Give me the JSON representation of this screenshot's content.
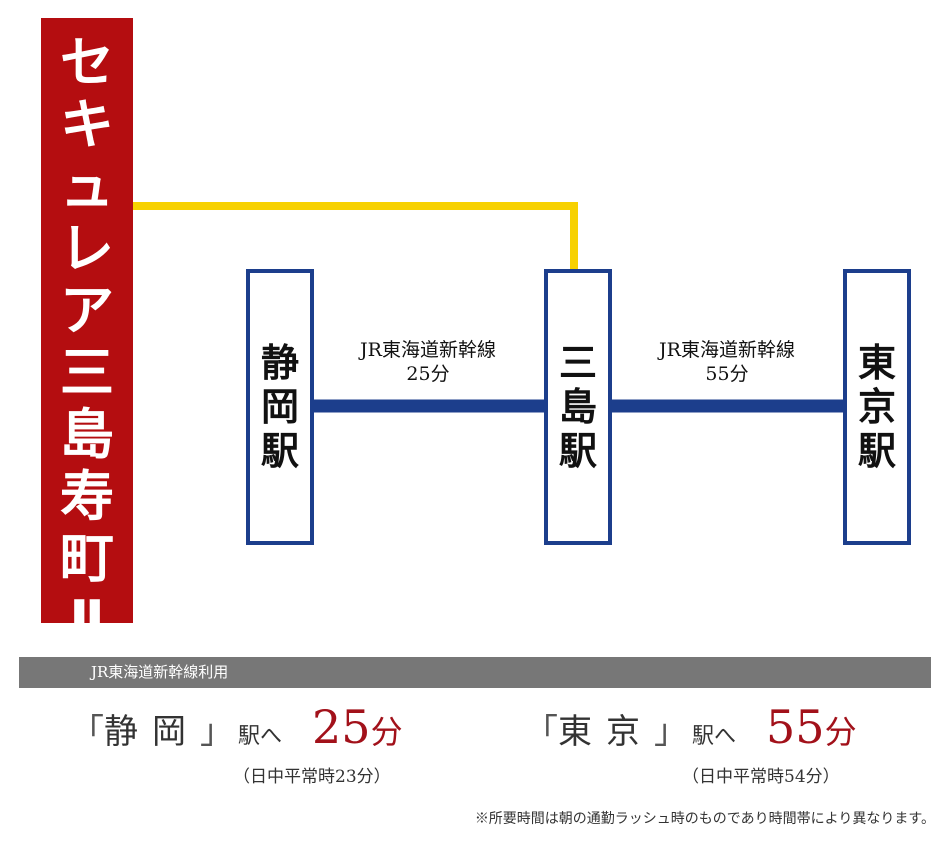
{
  "property": {
    "name_chars": [
      "セ",
      "キ",
      "ュ",
      "レ",
      "ア",
      "三",
      "島",
      "寿",
      "町",
      "Ⅱ"
    ],
    "color": "#b40d10"
  },
  "stations": [
    {
      "id": "shizuoka",
      "chars": [
        "静",
        "岡",
        "駅"
      ]
    },
    {
      "id": "mishima",
      "chars": [
        "三",
        "島",
        "駅"
      ]
    },
    {
      "id": "tokyo",
      "chars": [
        "東",
        "京",
        "駅"
      ]
    }
  ],
  "routes": [
    {
      "line": "JR東海道新幹線",
      "time": "25分"
    },
    {
      "line": "JR東海道新幹線",
      "time": "55分"
    }
  ],
  "colors": {
    "local_route": "#f7d101",
    "shinkansen": "#1c3e8c",
    "accent": "#a2111a",
    "summary_bar": "#777777"
  },
  "summary": {
    "bar_label": "JR東海道新幹線利用",
    "items": [
      {
        "open_bracket": "「",
        "station": "静岡",
        "close_bracket": "」",
        "suffix": "駅へ",
        "time": "25",
        "unit": "分",
        "note": "（日中平常時23分）"
      },
      {
        "open_bracket": "「",
        "station": "東京",
        "close_bracket": "」",
        "suffix": "駅へ",
        "time": "55",
        "unit": "分",
        "note": "（日中平常時54分）"
      }
    ]
  },
  "footnote": "※所要時間は朝の通勤ラッシュ時のものであり時間帯により異なります。"
}
